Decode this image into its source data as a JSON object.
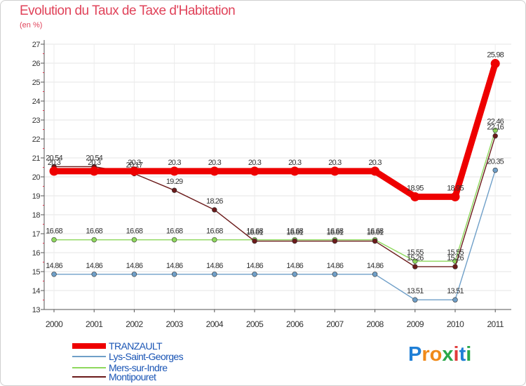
{
  "title": "Evolution du Taux de Taxe d'Habitation",
  "subtitle": "(en %)",
  "logo": {
    "text": "Proxiti",
    "letters": [
      "P",
      "r",
      "o",
      "x",
      "i",
      "t",
      "i"
    ],
    "colors": [
      "#1f7fd6",
      "#f08a1a",
      "#f08a1a",
      "#2aa84a",
      "#e03a3a",
      "#1f7fd6",
      "#2aa84a"
    ]
  },
  "chart_data": {
    "type": "line",
    "title": "Evolution du Taux de Taxe d'Habitation",
    "ylabel": "(en %)",
    "xlabel": "",
    "ylim": [
      13,
      27
    ],
    "yticks": [
      "13",
      "14",
      "15",
      "16",
      "17",
      "18",
      "19",
      "20",
      "21",
      "22",
      "23",
      "24",
      "25",
      "26",
      "27"
    ],
    "categories": [
      "2000",
      "2001",
      "2002",
      "2003",
      "2004",
      "2005",
      "2006",
      "2007",
      "2008",
      "2009",
      "2010",
      "2011"
    ],
    "series": [
      {
        "name": "TRANZAULT",
        "color": "#ee0000",
        "values": [
          20.3,
          20.3,
          20.3,
          20.3,
          20.3,
          20.3,
          20.3,
          20.3,
          20.3,
          18.95,
          18.95,
          25.98
        ],
        "labels": [
          "20.3",
          "20.3",
          "20.3",
          "20.3",
          "20.3",
          "20.3",
          "20.3",
          "20.3",
          "20.3",
          "18.95",
          "18.95",
          "25.98"
        ]
      },
      {
        "name": "Lys-Saint-Georges",
        "color": "#6f9fc8",
        "values": [
          14.86,
          14.86,
          14.86,
          14.86,
          14.86,
          14.86,
          14.86,
          14.86,
          14.86,
          13.51,
          13.51,
          20.35
        ],
        "labels": [
          "14.86",
          "14.86",
          "14.86",
          "14.86",
          "14.86",
          "14.86",
          "14.86",
          "14.86",
          "14.86",
          "13.51",
          "13.51",
          "20.35"
        ]
      },
      {
        "name": "Mers-sur-Indre",
        "color": "#8ed85c",
        "values": [
          16.68,
          16.68,
          16.68,
          16.68,
          16.68,
          16.68,
          16.68,
          16.68,
          16.68,
          15.55,
          15.55,
          22.46
        ],
        "labels": [
          "16.68",
          "16.68",
          "16.68",
          "16.68",
          "16.68",
          "16.68",
          "16.68",
          "16.68",
          "16.68",
          "15.55",
          "15.55",
          "22.46"
        ]
      },
      {
        "name": "Montipouret",
        "color": "#6b1a1a",
        "values": [
          20.54,
          20.54,
          20.17,
          19.29,
          18.26,
          16.61,
          16.61,
          16.61,
          16.61,
          15.26,
          15.26,
          22.16
        ],
        "labels": [
          "20.54",
          "20.54",
          "20.17",
          "19.29",
          "18.26",
          "16.61",
          "16.61",
          "16.61",
          "16.61",
          "15.26",
          "15.26",
          "22.16"
        ]
      }
    ]
  }
}
